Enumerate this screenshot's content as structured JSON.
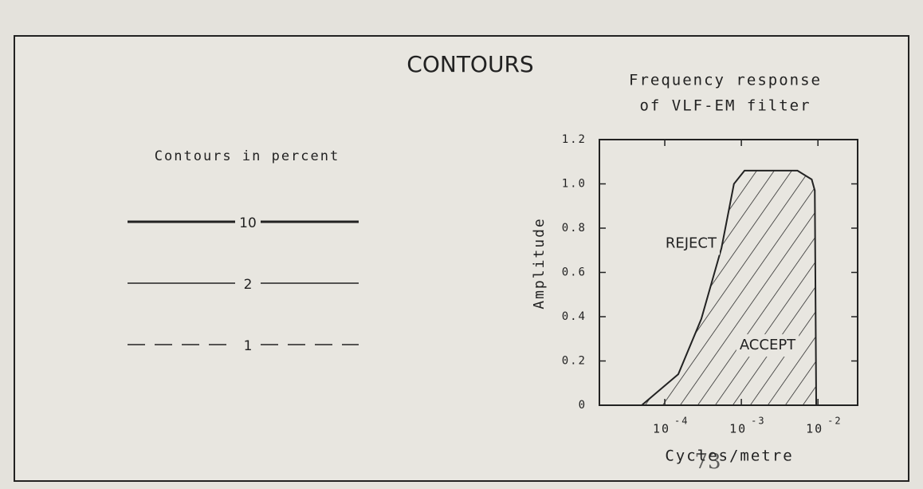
{
  "title": "CONTOURS",
  "legend": {
    "heading": "Contours in percent",
    "items": [
      {
        "label": "10",
        "style": "thick"
      },
      {
        "label": "2",
        "style": "thin"
      },
      {
        "label": "1",
        "style": "dashed"
      }
    ]
  },
  "page_number": "73",
  "chart_data": {
    "type": "area",
    "title": [
      "Frequency response",
      "of VLF-EM filter"
    ],
    "xlabel": "Cycles/metre",
    "ylabel": "Amplitude",
    "x": [
      5e-05,
      0.00015,
      0.0003,
      0.00055,
      0.0008,
      0.0011,
      0.0054,
      0.0083,
      0.0091,
      0.0095
    ],
    "values": [
      0,
      0.14,
      0.39,
      0.71,
      1.0,
      1.06,
      1.06,
      1.02,
      0.97,
      0
    ],
    "xlim": [
      1.4e-05,
      0.033
    ],
    "ylim": [
      0,
      1.2
    ],
    "xscale": "log",
    "xticks": [
      {
        "value": 0.0001,
        "label": "10",
        "sup": "-4"
      },
      {
        "value": 0.001,
        "label": "10",
        "sup": "-3"
      },
      {
        "value": 0.01,
        "label": "10",
        "sup": "-2"
      }
    ],
    "yticks": [
      0,
      0.2,
      0.4,
      0.6,
      0.8,
      {
        "value": 1.0,
        "label": "1.0"
      },
      1.2
    ],
    "annotations": [
      {
        "text": "REJECT",
        "x": 0.00022,
        "y": 0.73
      },
      {
        "text": "ACCEPT",
        "x": 0.0022,
        "y": 0.27
      }
    ],
    "hatch": true,
    "color": "#222"
  }
}
